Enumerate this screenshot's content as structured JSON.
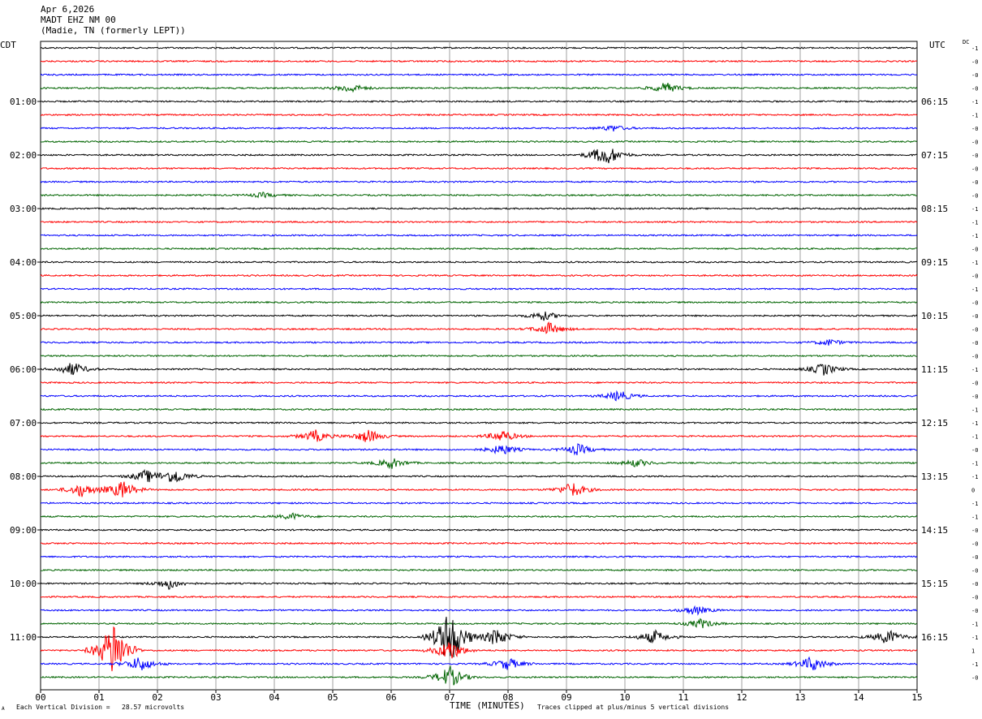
{
  "header": {
    "date": "Apr 6,2026",
    "station": "MADT EHZ NM 00",
    "location": "(Madie, TN (formerly LEPT))"
  },
  "left_tz": "CDT",
  "right_tz": "UTC",
  "dc_label": "DC",
  "footer": {
    "scale_note": "Each Vertical Division =   28.57 microvolts",
    "xlabel": "TIME (MINUTES)",
    "clip_note": "Traces clipped at plus/minus 5 vertical divisions",
    "corner_mark": "A"
  },
  "colors": {
    "black": "#000000",
    "red": "#ff0000",
    "blue": "#0000ff",
    "green": "#006400",
    "grid": "#a0a0a0"
  },
  "chart_data": {
    "type": "line",
    "title": "",
    "xlabel": "TIME (MINUTES)",
    "xlim": [
      0,
      15
    ],
    "x_ticks": [
      "00",
      "01",
      "02",
      "03",
      "04",
      "05",
      "06",
      "07",
      "08",
      "09",
      "10",
      "11",
      "12",
      "13",
      "14",
      "15"
    ],
    "traces_per_hour": 4,
    "trace_count": 48,
    "trace_colors": [
      "black",
      "red",
      "blue",
      "green"
    ],
    "left_hour_labels": [
      "01:00",
      "02:00",
      "03:00",
      "04:00",
      "05:00",
      "06:00",
      "07:00",
      "08:00",
      "09:00",
      "10:00",
      "11:00"
    ],
    "right_hour_labels": [
      "06:15",
      "07:15",
      "08:15",
      "09:15",
      "10:15",
      "11:15",
      "12:15",
      "13:15",
      "14:15",
      "15:15",
      "16:15"
    ],
    "right_dc_values": [
      "-1",
      "-0",
      "-0",
      "-0",
      "-1",
      "-1",
      "-0",
      "-0",
      "-0",
      "-0",
      "-0",
      "-0",
      "-1",
      "-1",
      "-1",
      "-0",
      "-1",
      "-0",
      "-1",
      "-0",
      "-0",
      "-0",
      "-0",
      "-0",
      "-1",
      "-0",
      "-0",
      "-1",
      "-1",
      "-1",
      "-0",
      "-1",
      "-1",
      "0",
      "-1",
      "-1",
      "-0",
      "-0",
      "-0",
      "-0",
      "-0",
      "-0",
      "-0",
      "-1",
      "-1",
      "1",
      "-1",
      "-0"
    ],
    "events": [
      {
        "trace": 3,
        "t": 5.3,
        "amp": 6
      },
      {
        "trace": 3,
        "t": 10.7,
        "amp": 7
      },
      {
        "trace": 6,
        "t": 9.8,
        "amp": 4
      },
      {
        "trace": 8,
        "t": 9.6,
        "amp": 8
      },
      {
        "trace": 8,
        "t": 9.75,
        "amp": 7
      },
      {
        "trace": 11,
        "t": 3.8,
        "amp": 3
      },
      {
        "trace": 20,
        "t": 8.6,
        "amp": 6
      },
      {
        "trace": 21,
        "t": 8.7,
        "amp": 8
      },
      {
        "trace": 22,
        "t": 13.5,
        "amp": 4
      },
      {
        "trace": 24,
        "t": 0.55,
        "amp": 9
      },
      {
        "trace": 24,
        "t": 13.4,
        "amp": 8
      },
      {
        "trace": 26,
        "t": 9.9,
        "amp": 7
      },
      {
        "trace": 29,
        "t": 4.7,
        "amp": 8
      },
      {
        "trace": 29,
        "t": 5.6,
        "amp": 9
      },
      {
        "trace": 29,
        "t": 7.9,
        "amp": 8
      },
      {
        "trace": 30,
        "t": 7.9,
        "amp": 7
      },
      {
        "trace": 30,
        "t": 9.2,
        "amp": 7
      },
      {
        "trace": 31,
        "t": 6.0,
        "amp": 7
      },
      {
        "trace": 31,
        "t": 10.2,
        "amp": 5
      },
      {
        "trace": 32,
        "t": 2.3,
        "amp": 10
      },
      {
        "trace": 32,
        "t": 1.8,
        "amp": 8
      },
      {
        "trace": 33,
        "t": 1.4,
        "amp": 12
      },
      {
        "trace": 33,
        "t": 0.7,
        "amp": 9
      },
      {
        "trace": 33,
        "t": 9.1,
        "amp": 10
      },
      {
        "trace": 35,
        "t": 4.3,
        "amp": 4
      },
      {
        "trace": 40,
        "t": 2.2,
        "amp": 7
      },
      {
        "trace": 42,
        "t": 11.2,
        "amp": 6
      },
      {
        "trace": 43,
        "t": 11.3,
        "amp": 6
      },
      {
        "trace": 44,
        "t": 7.0,
        "amp": 40
      },
      {
        "trace": 44,
        "t": 7.8,
        "amp": 12
      },
      {
        "trace": 44,
        "t": 14.5,
        "amp": 10
      },
      {
        "trace": 44,
        "t": 10.5,
        "amp": 9
      },
      {
        "trace": 45,
        "t": 1.25,
        "amp": 40
      },
      {
        "trace": 45,
        "t": 7.0,
        "amp": 14
      },
      {
        "trace": 46,
        "t": 1.7,
        "amp": 10
      },
      {
        "trace": 46,
        "t": 8.0,
        "amp": 8
      },
      {
        "trace": 46,
        "t": 13.2,
        "amp": 10
      },
      {
        "trace": 47,
        "t": 7.0,
        "amp": 14
      }
    ]
  }
}
